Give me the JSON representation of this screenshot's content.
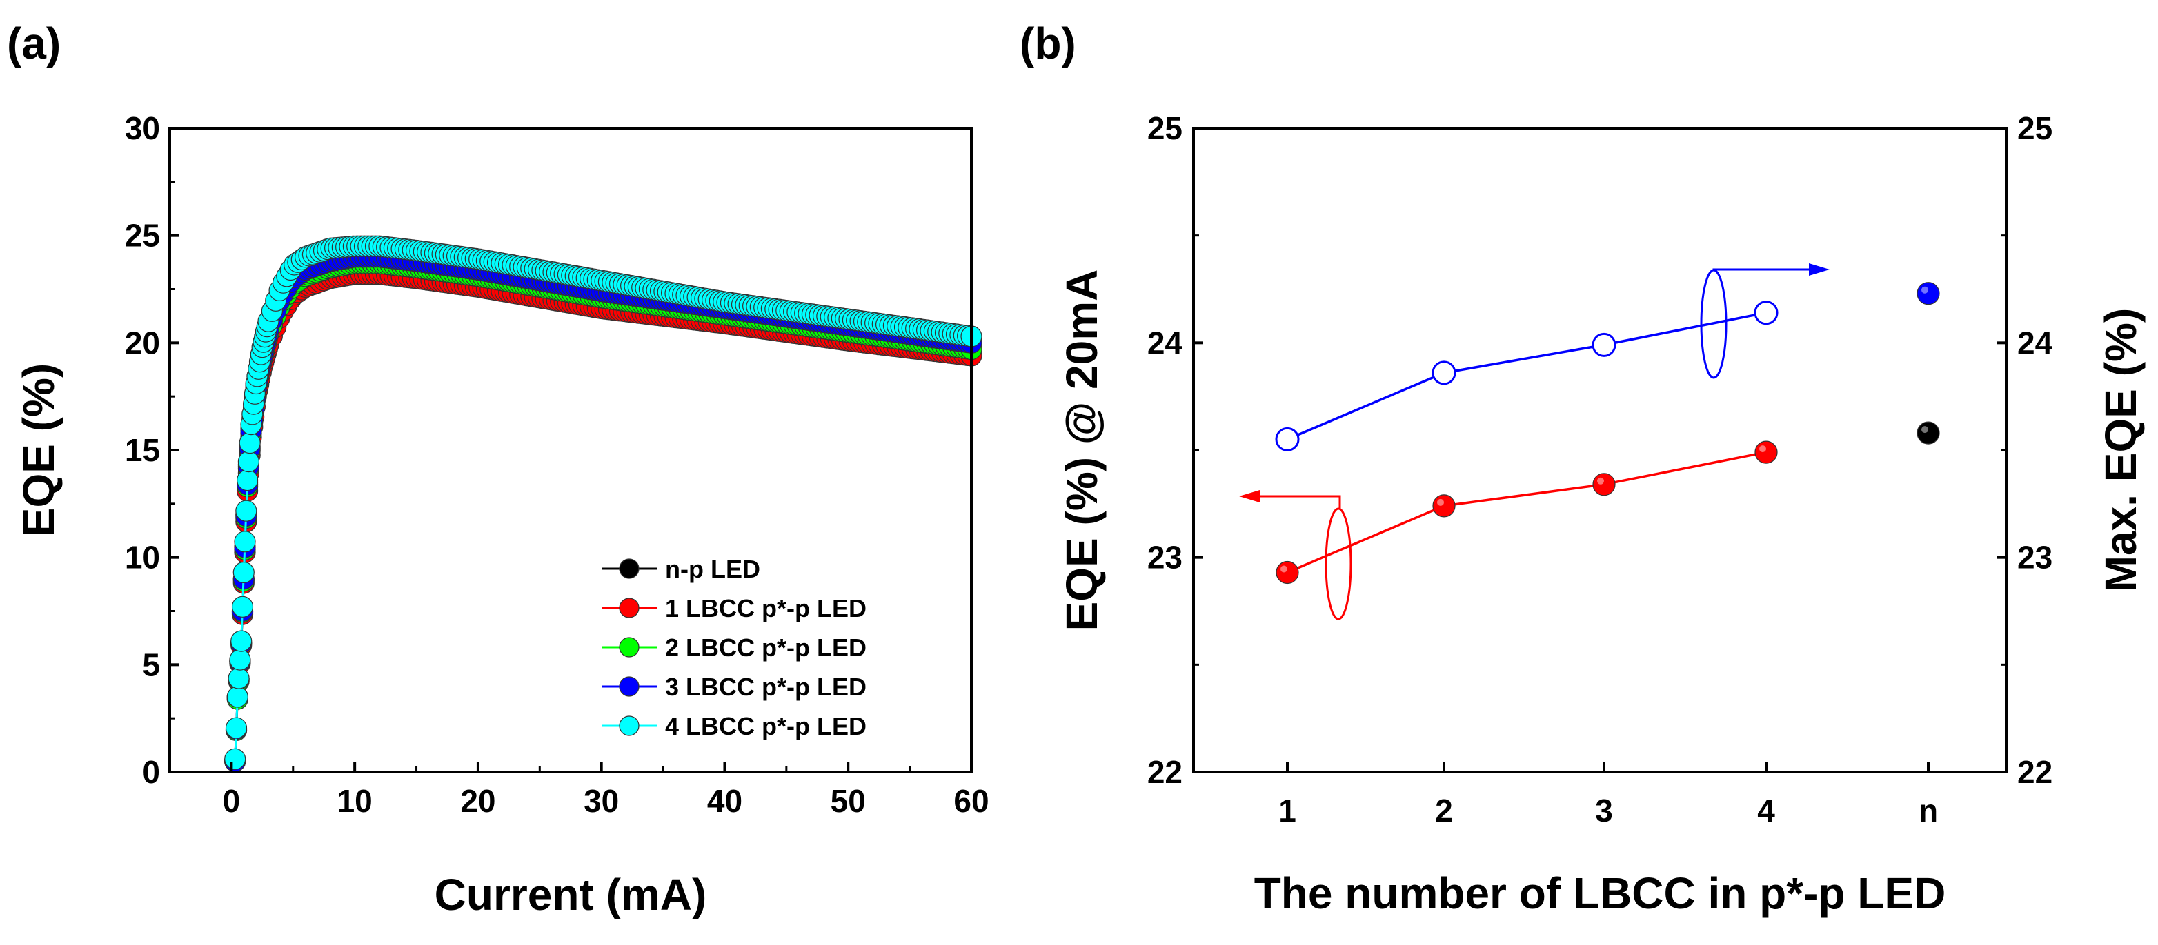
{
  "chart_data": [
    {
      "panel": "(a)",
      "type": "line",
      "xlabel": "Current (mA)",
      "ylabel": "EQE (%)",
      "xlim": [
        -5,
        60
      ],
      "ylim": [
        0,
        30
      ],
      "xticks": [
        0,
        10,
        20,
        30,
        40,
        50,
        60
      ],
      "yticks": [
        0,
        5,
        10,
        15,
        20,
        25,
        30
      ],
      "legend_position": "lower-right",
      "series": [
        {
          "name": "n-p LED",
          "color": "#000000",
          "x": [
            0.3,
            0.5,
            0.8,
            1.0,
            1.3,
            1.6,
            2.0,
            2.5,
            3,
            4,
            5,
            6,
            8,
            10,
            12,
            15,
            20,
            25,
            30,
            40,
            50,
            60
          ],
          "y": [
            0.5,
            3.5,
            6,
            9,
            13.5,
            16,
            18,
            19.6,
            20.8,
            22.4,
            23.4,
            23.8,
            24.2,
            24.4,
            24.4,
            24.2,
            23.8,
            23.3,
            22.8,
            21.9,
            21.0,
            20.2
          ]
        },
        {
          "name": "1 LBCC p*-p LED",
          "color": "#ff0000",
          "x": [
            0.3,
            0.5,
            0.8,
            1.0,
            1.3,
            1.6,
            2.0,
            2.5,
            3,
            4,
            5,
            6,
            8,
            10,
            12,
            15,
            20,
            25,
            30,
            40,
            50,
            60
          ],
          "y": [
            0.5,
            3.4,
            5.9,
            8.8,
            13.1,
            15.6,
            17.5,
            18.9,
            19.9,
            21.3,
            22.2,
            22.6,
            23.0,
            23.2,
            23.2,
            23.0,
            22.6,
            22.1,
            21.6,
            20.9,
            20.1,
            19.4
          ]
        },
        {
          "name": "2 LBCC p*-p LED",
          "color": "#00ff00",
          "x": [
            0.3,
            0.5,
            0.8,
            1.0,
            1.3,
            1.6,
            2.0,
            2.5,
            3,
            4,
            5,
            6,
            8,
            10,
            12,
            15,
            20,
            25,
            30,
            40,
            50,
            60
          ],
          "y": [
            0.5,
            3.4,
            6,
            8.9,
            13.3,
            15.8,
            17.8,
            19.3,
            20.4,
            21.8,
            22.7,
            23.1,
            23.5,
            23.7,
            23.7,
            23.5,
            23.1,
            22.6,
            22.1,
            21.3,
            20.5,
            19.7
          ]
        },
        {
          "name": "3 LBCC p*-p LED",
          "color": "#0000ff",
          "x": [
            0.3,
            0.5,
            0.8,
            1.0,
            1.3,
            1.6,
            2.0,
            2.5,
            3,
            4,
            5,
            6,
            8,
            10,
            12,
            15,
            20,
            25,
            30,
            40,
            50,
            60
          ],
          "y": [
            0.5,
            3.5,
            6,
            9,
            13.4,
            15.9,
            17.9,
            19.4,
            20.6,
            22.1,
            23.0,
            23.4,
            23.8,
            24.0,
            24.0,
            23.8,
            23.4,
            22.9,
            22.4,
            21.6,
            20.8,
            20.0
          ]
        },
        {
          "name": "4 LBCC p*-p LED",
          "color": "#00ffff",
          "x": [
            0.3,
            0.5,
            0.8,
            1.0,
            1.3,
            1.6,
            2.0,
            2.5,
            3,
            4,
            5,
            6,
            8,
            10,
            12,
            15,
            20,
            25,
            30,
            40,
            50,
            60
          ],
          "y": [
            0.6,
            3.5,
            6.1,
            9.3,
            13.6,
            16.2,
            18.1,
            19.8,
            21.0,
            22.6,
            23.6,
            24.0,
            24.4,
            24.5,
            24.5,
            24.3,
            23.9,
            23.4,
            22.9,
            21.9,
            21.1,
            20.3
          ]
        }
      ]
    },
    {
      "panel": "(b)",
      "type": "scatter",
      "xlabel": "The number of LBCC in p*-p LED",
      "ylabel_left": "EQE (%) @ 20mA",
      "ylabel_right": "Max. EQE (%)",
      "categories": [
        "1",
        "2",
        "3",
        "4",
        "n"
      ],
      "ylim": [
        22,
        25
      ],
      "yticks": [
        22,
        23,
        24,
        25
      ],
      "series": [
        {
          "name": "EQE @ 20mA",
          "axis": "left",
          "color": "#ff0000",
          "marker": "filled",
          "connected_categories": [
            "1",
            "2",
            "3",
            "4"
          ],
          "values": [
            22.93,
            23.24,
            23.34,
            23.49,
            null
          ]
        },
        {
          "name": "Max. EQE",
          "axis": "right",
          "color": "#0000ff",
          "marker": "hollow",
          "connected_categories": [
            "1",
            "2",
            "3",
            "4"
          ],
          "values": [
            23.55,
            23.86,
            23.99,
            24.14,
            null
          ]
        },
        {
          "name": "n-p LED EQE @ 20mA",
          "axis": "left",
          "color": "#000000",
          "marker": "filled",
          "values": [
            null,
            null,
            null,
            null,
            23.58
          ]
        },
        {
          "name": "n-p LED Max. EQE",
          "axis": "right",
          "color": "#0000ff",
          "marker": "filled",
          "values": [
            null,
            null,
            null,
            null,
            24.23
          ]
        }
      ],
      "annotations": [
        {
          "type": "ellipse-arrow",
          "color": "#ff0000",
          "points_to": "left-axis"
        },
        {
          "type": "ellipse-arrow",
          "color": "#0000ff",
          "points_to": "right-axis"
        }
      ]
    }
  ]
}
